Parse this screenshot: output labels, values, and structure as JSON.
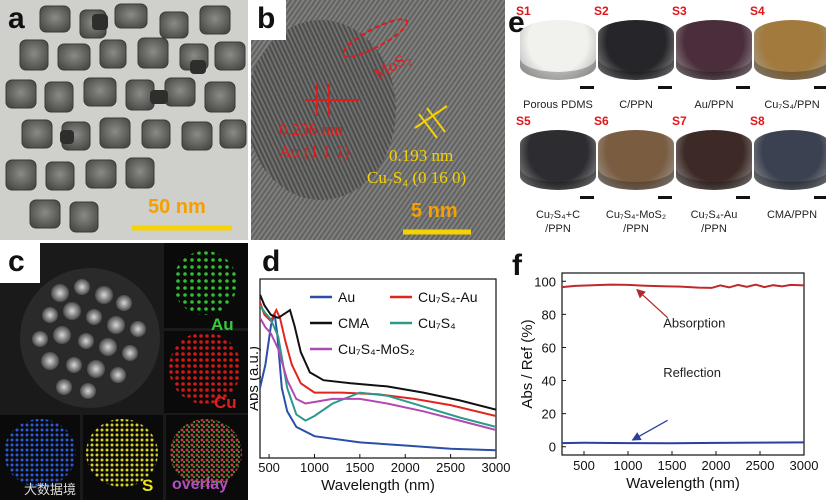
{
  "panels": {
    "a": {
      "label": "a",
      "scale": "50 nm"
    },
    "b": {
      "label": "b",
      "scale": "5 nm",
      "mos2": "MoS₂",
      "au_d": "0.236 nm",
      "au_plane": "Au (1 1 1)",
      "cu_d": "0.193 nm",
      "cu_plane": "Cu₇S₄ (0 16 0)"
    },
    "c": {
      "label": "c",
      "maps": [
        "Au",
        "Cu",
        "S",
        "overlay"
      ],
      "watermark": "大数据境"
    },
    "d": {
      "label": "d"
    },
    "e": {
      "label": "e",
      "samples": [
        {
          "id": "S1",
          "name": "Porous PDMS",
          "color": "#f1f1ee"
        },
        {
          "id": "S2",
          "name": "C/PPN",
          "color": "#26262a"
        },
        {
          "id": "S3",
          "name": "Au/PPN",
          "color": "#4b2e3c"
        },
        {
          "id": "S4",
          "name": "Cu₇S₄/PPN",
          "color": "#a27a3e"
        },
        {
          "id": "S5",
          "name": "Cu₇S₄+C\n/PPN",
          "color": "#2d2d31"
        },
        {
          "id": "S6",
          "name": "Cu₇S₄-MoS₂\n/PPN",
          "color": "#7a5c40"
        },
        {
          "id": "S7",
          "name": "Cu₇S₄-Au\n/PPN",
          "color": "#3d2a26"
        },
        {
          "id": "S8",
          "name": "CMA/PPN",
          "color": "#3b4150"
        }
      ]
    },
    "f": {
      "label": "f"
    }
  },
  "chart_data": [
    {
      "type": "line",
      "id": "d",
      "xlabel": "Wavelength (nm)",
      "ylabel": "Abs (a.u.)",
      "xlim": [
        400,
        3000
      ],
      "xticks": [
        500,
        1000,
        1500,
        2000,
        2500,
        3000
      ],
      "yticks": [],
      "legend": [
        "Au",
        "Cu₇S₄-Au",
        "CMA",
        "Cu₇S₄",
        "Cu₇S₄-MoS₂"
      ],
      "series": [
        {
          "name": "Au",
          "color": "#2a4fa8",
          "x": [
            400,
            460,
            520,
            560,
            590,
            640,
            700,
            800,
            1000,
            1500,
            2000,
            2500,
            3000
          ],
          "y": [
            0.45,
            0.6,
            0.85,
            0.93,
            0.8,
            0.45,
            0.3,
            0.2,
            0.14,
            0.1,
            0.08,
            0.06,
            0.05
          ]
        },
        {
          "name": "Cu₇S₄-Au",
          "color": "#e0261f",
          "x": [
            400,
            450,
            520,
            580,
            620,
            680,
            750,
            850,
            1000,
            1300,
            1700,
            2100,
            2500,
            3000
          ],
          "y": [
            1.0,
            0.92,
            0.88,
            0.95,
            0.9,
            0.75,
            0.6,
            0.48,
            0.42,
            0.42,
            0.41,
            0.38,
            0.34,
            0.27
          ]
        },
        {
          "name": "CMA",
          "color": "#111111",
          "x": [
            400,
            450,
            520,
            600,
            680,
            730,
            780,
            850,
            950,
            1100,
            1400,
            1800,
            2200,
            2600,
            3000
          ],
          "y": [
            1.05,
            0.98,
            0.92,
            0.9,
            0.93,
            0.95,
            0.85,
            0.68,
            0.55,
            0.5,
            0.48,
            0.46,
            0.42,
            0.37,
            0.31
          ]
        },
        {
          "name": "Cu₇S₄",
          "color": "#2a9a8c",
          "x": [
            400,
            460,
            520,
            600,
            700,
            800,
            900,
            1000,
            1200,
            1500,
            1800,
            2200,
            2600,
            3000
          ],
          "y": [
            0.98,
            0.93,
            0.89,
            0.78,
            0.45,
            0.28,
            0.24,
            0.27,
            0.35,
            0.42,
            0.4,
            0.33,
            0.26,
            0.2
          ]
        },
        {
          "name": "Cu₇S₄-MoS₂",
          "color": "#b04ab0",
          "x": [
            400,
            460,
            520,
            600,
            700,
            800,
            900,
            1000,
            1200,
            1500,
            1800,
            2200,
            2600,
            3000
          ],
          "y": [
            0.9,
            0.84,
            0.8,
            0.7,
            0.5,
            0.38,
            0.35,
            0.36,
            0.38,
            0.38,
            0.35,
            0.3,
            0.24,
            0.18
          ]
        }
      ]
    },
    {
      "type": "line",
      "id": "f",
      "xlabel": "Wavelength (nm)",
      "ylabel": "Abs / Ref (%)",
      "xlim": [
        250,
        3000
      ],
      "ylim": [
        -5,
        105
      ],
      "xticks": [
        500,
        1000,
        1500,
        2000,
        2500,
        3000
      ],
      "yticks": [
        0,
        20,
        40,
        60,
        80,
        100
      ],
      "annotations": [
        {
          "text": "Absorption",
          "target_series": "Absorption",
          "at_x": 1100
        },
        {
          "text": "Reflection",
          "target_series": "Reflection",
          "at_x": 1050
        }
      ],
      "series": [
        {
          "name": "Absorption",
          "color": "#c0282c",
          "x": [
            250,
            400,
            600,
            800,
            1000,
            1200,
            1400,
            1600,
            1800,
            1950,
            2050,
            2150,
            2250,
            2350,
            2450,
            2550,
            2650,
            2750,
            2850,
            3000
          ],
          "y": [
            96.5,
            97.2,
            97.6,
            98.0,
            97.8,
            97.3,
            97.0,
            96.8,
            96.2,
            96.0,
            97.5,
            96.3,
            97.8,
            96.6,
            98.0,
            96.5,
            97.6,
            96.9,
            97.8,
            97.5
          ]
        },
        {
          "name": "Reflection",
          "color": "#2a3fa0",
          "x": [
            250,
            500,
            1000,
            1500,
            2000,
            2500,
            3000
          ],
          "y": [
            2.2,
            2.4,
            2.2,
            2.1,
            2.3,
            2.5,
            2.6
          ]
        }
      ]
    }
  ]
}
